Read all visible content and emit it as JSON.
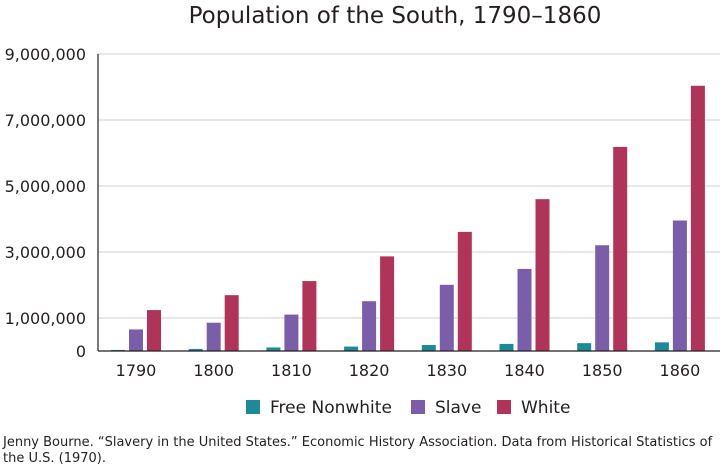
{
  "chart_data": {
    "type": "bar",
    "title": "Population of the South, 1790–1860",
    "categories": [
      "1790",
      "1800",
      "1810",
      "1820",
      "1830",
      "1840",
      "1850",
      "1860"
    ],
    "series": [
      {
        "name": "Free Nonwhite",
        "color": "#1d8a99",
        "values": [
          32000,
          62000,
          108000,
          134000,
          182000,
          215000,
          238000,
          262000
        ]
      },
      {
        "name": "Slave",
        "color": "#7b5ea9",
        "values": [
          654000,
          857000,
          1103000,
          1509000,
          2005000,
          2487000,
          3205000,
          3954000
        ]
      },
      {
        "name": "White",
        "color": "#b0345a",
        "values": [
          1240000,
          1692000,
          2119000,
          2867000,
          3610000,
          4601000,
          6184000,
          8037000
        ]
      }
    ],
    "yticks": [
      {
        "value": 0,
        "label": "0"
      },
      {
        "value": 1000000,
        "label": "1,000,000"
      },
      {
        "value": 3000000,
        "label": "3,000,000"
      },
      {
        "value": 5000000,
        "label": "5,000,000"
      },
      {
        "value": 7000000,
        "label": "7,000,000"
      },
      {
        "value": 9000000,
        "label": "9,000,000"
      }
    ],
    "ylim": [
      0,
      9000000
    ],
    "grid": true,
    "legend": "bottom-center",
    "xlabel": "",
    "ylabel": ""
  },
  "source": "Jenny Bourne. “Slavery in the United States.” Economic History Association. Data from Historical Statistics of the U.S. (1970)."
}
